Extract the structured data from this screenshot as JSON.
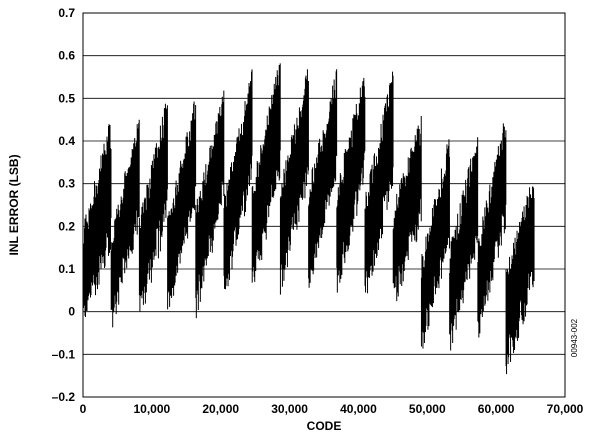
{
  "chart_data": {
    "type": "line",
    "title": "",
    "xlabel": "CODE",
    "ylabel": "INL ERROR (LSB)",
    "xlim": [
      0,
      70000
    ],
    "ylim": [
      -0.2,
      0.7
    ],
    "x_ticks": [
      0,
      10000,
      20000,
      30000,
      40000,
      50000,
      60000,
      70000
    ],
    "x_tick_labels": [
      "0",
      "10,000",
      "20,000",
      "30,000",
      "40,000",
      "50,000",
      "60,000",
      "70,000"
    ],
    "y_ticks": [
      -0.2,
      -0.1,
      0,
      0.1,
      0.2,
      0.3,
      0.4,
      0.5,
      0.6,
      0.7
    ],
    "y_tick_labels": [
      "–0.2",
      "–0.1",
      "0",
      "0.1",
      "0.2",
      "0.3",
      "0.4",
      "0.5",
      "0.6",
      "0.7"
    ],
    "grid": "horizontal",
    "line_color": "#000000",
    "figure_code": "00943-002",
    "series": [
      {
        "segments": [
          {
            "x_start": 0,
            "x_end": 4096,
            "min_start": -0.05,
            "max_start": 0.2,
            "min_end": 0.15,
            "max_end": 0.46
          },
          {
            "x_start": 4096,
            "x_end": 8192,
            "min_start": -0.05,
            "max_start": 0.2,
            "min_end": 0.2,
            "max_end": 0.46
          },
          {
            "x_start": 8192,
            "x_end": 12288,
            "min_start": -0.03,
            "max_start": 0.22,
            "min_end": 0.2,
            "max_end": 0.51
          },
          {
            "x_start": 12288,
            "x_end": 16384,
            "min_start": -0.02,
            "max_start": 0.22,
            "min_end": 0.25,
            "max_end": 0.51
          },
          {
            "x_start": 16384,
            "x_end": 20480,
            "min_start": -0.02,
            "max_start": 0.25,
            "min_end": 0.25,
            "max_end": 0.52
          },
          {
            "x_start": 20480,
            "x_end": 24576,
            "min_start": 0.02,
            "max_start": 0.27,
            "min_end": 0.3,
            "max_end": 0.57
          },
          {
            "x_start": 24576,
            "x_end": 28672,
            "min_start": 0.02,
            "max_start": 0.3,
            "min_end": 0.32,
            "max_end": 0.6
          },
          {
            "x_start": 28672,
            "x_end": 32768,
            "min_start": 0.04,
            "max_start": 0.3,
            "min_end": 0.3,
            "max_end": 0.58
          },
          {
            "x_start": 32768,
            "x_end": 36864,
            "min_start": 0.03,
            "max_start": 0.3,
            "min_end": 0.3,
            "max_end": 0.57
          },
          {
            "x_start": 36864,
            "x_end": 40960,
            "min_start": 0.04,
            "max_start": 0.3,
            "min_end": 0.3,
            "max_end": 0.57
          },
          {
            "x_start": 40960,
            "x_end": 45056,
            "min_start": 0.02,
            "max_start": 0.27,
            "min_end": 0.28,
            "max_end": 0.57
          },
          {
            "x_start": 45056,
            "x_end": 49152,
            "min_start": 0.0,
            "max_start": 0.25,
            "min_end": 0.2,
            "max_end": 0.46
          },
          {
            "x_start": 49152,
            "x_end": 53248,
            "min_start": -0.1,
            "max_start": 0.13,
            "min_end": 0.15,
            "max_end": 0.42
          },
          {
            "x_start": 53248,
            "x_end": 57344,
            "min_start": -0.1,
            "max_start": 0.15,
            "min_end": 0.15,
            "max_end": 0.43
          },
          {
            "x_start": 57344,
            "x_end": 61440,
            "min_start": -0.07,
            "max_start": 0.17,
            "min_end": 0.2,
            "max_end": 0.47
          },
          {
            "x_start": 61440,
            "x_end": 65536,
            "min_start": -0.15,
            "max_start": 0.1,
            "min_end": 0.05,
            "max_end": 0.33
          }
        ]
      }
    ]
  }
}
